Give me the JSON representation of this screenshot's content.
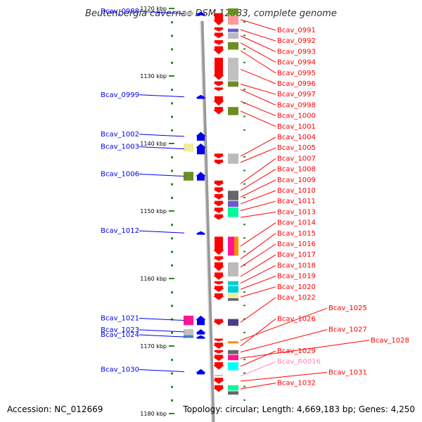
{
  "title": "Beutenbergia cavernae DSM 12333, complete genome",
  "accession": "Accession: NC_012669",
  "topology": "Topology: circular; Length: 4,669,183 bp; Genes: 4,250",
  "colors": {
    "forward_gene": "#ff0000",
    "reverse_gene": "#0000ee",
    "rna_gene": "#ff88bb",
    "backbone": "#999999",
    "tick": "#228b22",
    "cog_gray": "#c0c0c0",
    "cog_dark": "#666666",
    "cog_olive": "#6b8e23",
    "cog_lightgray": "#bbbbbb",
    "cog_slate": "#6a5acd",
    "cog_yellow": "#eeee99",
    "cog_magenta": "#ff1493",
    "cog_orange": "#ff8c00",
    "cog_cyan": "#00ced1",
    "cog_spring": "#00fa9a",
    "cog_navy": "#483d8b",
    "cog_steel": "#4682b4"
  },
  "scale": {
    "unit": "kbp",
    "ticks": [
      {
        "pos": 1120,
        "label": "1120 kbp"
      },
      {
        "pos": 1130,
        "label": "1130 kbp"
      },
      {
        "pos": 1140,
        "label": "1140 kbp"
      },
      {
        "pos": 1150,
        "label": "1150 kbp"
      },
      {
        "pos": 1160,
        "label": "1160 kbp"
      },
      {
        "pos": 1170,
        "label": "1170 kbp"
      },
      {
        "pos": 1180,
        "label": "1180 kbp"
      }
    ]
  },
  "genes_reverse": [
    {
      "name": "Bcav_0988",
      "start": 1120.5,
      "end": 1121.0
    },
    {
      "name": "Bcav_0999",
      "start": 1132.8,
      "end": 1133.4
    },
    {
      "name": "Bcav_1002",
      "start": 1138.3,
      "end": 1139.6
    },
    {
      "name": "Bcav_1003",
      "start": 1140.0,
      "end": 1141.6
    },
    {
      "name": "Bcav_1006",
      "start": 1144.2,
      "end": 1145.5
    },
    {
      "name": "Bcav_1012",
      "start": 1153.0,
      "end": 1153.5
    },
    {
      "name": "Bcav_1021",
      "start": 1165.5,
      "end": 1166.9
    },
    {
      "name": "Bcav_1023",
      "start": 1167.5,
      "end": 1168.3
    },
    {
      "name": "Bcav_1024",
      "start": 1168.4,
      "end": 1168.9
    },
    {
      "name": "Bcav_1030",
      "start": 1173.4,
      "end": 1174.2
    }
  ],
  "genes_forward": [
    {
      "name": "Bcav_0991",
      "start": 1120.7,
      "end": 1122.6
    },
    {
      "name": "Bcav_0992",
      "start": 1122.8,
      "end": 1123.5
    },
    {
      "name": "Bcav_0993",
      "start": 1123.6,
      "end": 1124.5
    },
    {
      "name": "Bcav_0994",
      "start": 1124.7,
      "end": 1125.5
    },
    {
      "name": "Bcav_0995",
      "start": 1125.6,
      "end": 1126.9
    },
    {
      "name": "Bcav_0996",
      "start": 1127.3,
      "end": 1130.7
    },
    {
      "name": "Bcav_0997",
      "start": 1130.8,
      "end": 1131.6
    },
    {
      "name": "Bcav_0998",
      "start": 1131.7,
      "end": 1132.3
    },
    {
      "name": "Bcav_1000",
      "start": 1133.0,
      "end": 1134.5
    },
    {
      "name": "Bcav_1001",
      "start": 1134.6,
      "end": 1135.8
    },
    {
      "name": "Bcav_1004",
      "start": 1141.5,
      "end": 1142.3
    },
    {
      "name": "Bcav_1005",
      "start": 1142.4,
      "end": 1143.2
    },
    {
      "name": "Bcav_1007",
      "start": 1145.5,
      "end": 1146.4
    },
    {
      "name": "Bcav_1008",
      "start": 1146.5,
      "end": 1147.4
    },
    {
      "name": "Bcav_1009",
      "start": 1147.5,
      "end": 1148.4
    },
    {
      "name": "Bcav_1010",
      "start": 1148.5,
      "end": 1149.4
    },
    {
      "name": "Bcav_1011",
      "start": 1149.5,
      "end": 1150.4
    },
    {
      "name": "Bcav_1013",
      "start": 1150.5,
      "end": 1151.4
    },
    {
      "name": "Bcav_1014",
      "start": 1153.8,
      "end": 1156.6
    },
    {
      "name": "Bcav_1015",
      "start": 1156.7,
      "end": 1157.5
    },
    {
      "name": "Bcav_1016",
      "start": 1157.6,
      "end": 1159.0
    },
    {
      "name": "Bcav_1017",
      "start": 1159.1,
      "end": 1160.3
    },
    {
      "name": "Bcav_1018",
      "start": 1160.4,
      "end": 1161.0
    },
    {
      "name": "Bcav_1019",
      "start": 1161.1,
      "end": 1162.1
    },
    {
      "name": "Bcav_1020",
      "start": 1162.2,
      "end": 1163.3
    },
    {
      "name": "Bcav_1022",
      "start": 1166.0,
      "end": 1167.0
    },
    {
      "name": "Bcav_1025",
      "start": 1168.9,
      "end": 1169.4
    },
    {
      "name": "Bcav_1026",
      "start": 1169.5,
      "end": 1170.5
    },
    {
      "name": "Bcav_1027",
      "start": 1170.6,
      "end": 1171.2
    },
    {
      "name": "Bcav_1028",
      "start": 1171.3,
      "end": 1172.3
    },
    {
      "name": "Bcav_1029",
      "start": 1172.4,
      "end": 1173.6
    },
    {
      "name": "Bcav_R0016",
      "start": 1174.3,
      "end": 1174.6
    },
    {
      "name": "Bcav_1031",
      "start": 1174.7,
      "end": 1175.7
    },
    {
      "name": "Bcav_1032",
      "start": 1175.8,
      "end": 1176.9
    }
  ],
  "cog_reverse": [
    {
      "start": 1120.5,
      "end": 1121.0,
      "color": "#c0c0c0"
    },
    {
      "start": 1140.0,
      "end": 1141.2,
      "color": "#eeee99"
    },
    {
      "start": 1144.2,
      "end": 1145.5,
      "color": "#6b8e23"
    },
    {
      "start": 1165.5,
      "end": 1166.9,
      "color": "#ff1493"
    },
    {
      "start": 1167.5,
      "end": 1168.4,
      "color": "#c0c0c0"
    },
    {
      "start": 1168.4,
      "end": 1168.8,
      "color": "#4682b4"
    }
  ],
  "cog_forward": [
    {
      "start": 1120.0,
      "end": 1121.0,
      "color": "#6b8e23"
    },
    {
      "start": 1121.1,
      "end": 1122.4,
      "color": "#ff9999"
    },
    {
      "start": 1123.0,
      "end": 1123.5,
      "color": "#6a5acd"
    },
    {
      "start": 1123.6,
      "end": 1124.5,
      "color": "#bbbbbb"
    },
    {
      "start": 1125.0,
      "end": 1126.1,
      "color": "#6b8e23"
    },
    {
      "start": 1127.3,
      "end": 1130.7,
      "color": "#c0c0c0"
    },
    {
      "start": 1130.8,
      "end": 1131.6,
      "color": "#6b8e23"
    },
    {
      "start": 1134.6,
      "end": 1135.8,
      "color": "#6b8e23"
    },
    {
      "start": 1141.5,
      "end": 1143.0,
      "color": "#bbbbbb"
    },
    {
      "start": 1147.0,
      "end": 1148.4,
      "color": "#666666"
    },
    {
      "start": 1148.5,
      "end": 1149.4,
      "color": "#6a5acd"
    },
    {
      "start": 1149.5,
      "end": 1150.9,
      "color": "#00fa9a"
    },
    {
      "start": 1153.8,
      "end": 1156.6,
      "color": "#ff1493"
    },
    {
      "start": 1153.8,
      "end": 1156.6,
      "color": "#ff8c00"
    },
    {
      "start": 1157.6,
      "end": 1159.7,
      "color": "#bbbbbb"
    },
    {
      "start": 1160.4,
      "end": 1161.0,
      "color": "#00ced1"
    },
    {
      "start": 1161.1,
      "end": 1162.1,
      "color": "#00ced1"
    },
    {
      "start": 1162.2,
      "end": 1162.8,
      "color": "#eeee99"
    },
    {
      "start": 1162.9,
      "end": 1163.3,
      "color": "#666666"
    },
    {
      "start": 1166.0,
      "end": 1167.0,
      "color": "#483d8b"
    },
    {
      "start": 1169.3,
      "end": 1169.6,
      "color": "#ff8c00"
    },
    {
      "start": 1170.6,
      "end": 1171.2,
      "color": "#666666"
    },
    {
      "start": 1171.3,
      "end": 1172.1,
      "color": "#ff1493"
    },
    {
      "start": 1172.4,
      "end": 1173.6,
      "color": "#00ffff"
    },
    {
      "start": 1175.8,
      "end": 1176.6,
      "color": "#00fa9a"
    },
    {
      "start": 1176.7,
      "end": 1177.2,
      "color": "#666666"
    }
  ]
}
